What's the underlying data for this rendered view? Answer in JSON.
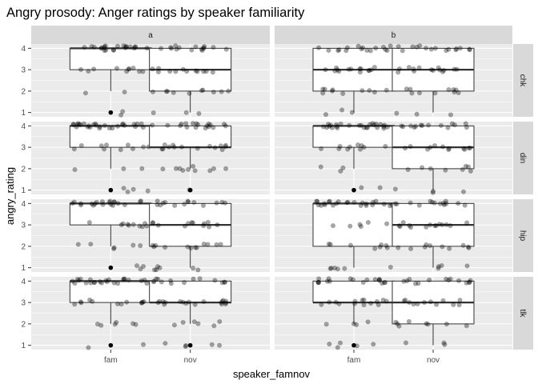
{
  "chart_data": {
    "type": "boxplot",
    "title": "Angry prosody: Anger ratings by speaker familiarity",
    "xlabel": "speaker_famnov",
    "ylabel": "angry_rating",
    "categories": [
      "fam",
      "nov"
    ],
    "y_ticks": [
      1,
      2,
      3,
      4
    ],
    "ylim": [
      0.8,
      4.2
    ],
    "facet_cols": [
      "a",
      "b"
    ],
    "facet_rows": [
      "chk",
      "din",
      "hip",
      "tlk"
    ],
    "grid": true,
    "panels": [
      {
        "col": "a",
        "row": "chk",
        "boxes": [
          {
            "x": "fam",
            "q1": 3,
            "median": 4,
            "q3": 4,
            "whisker_low": 2,
            "whisker_high": 4,
            "outliers": [
              1
            ],
            "counts": {
              "1": 2,
              "2": 2,
              "3": 10,
              "4": 22
            }
          },
          {
            "x": "nov",
            "q1": 2,
            "median": 3,
            "q3": 4,
            "whisker_low": 1,
            "whisker_high": 4,
            "outliers": [],
            "counts": {
              "1": 3,
              "2": 10,
              "3": 12,
              "4": 15
            }
          }
        ]
      },
      {
        "col": "b",
        "row": "chk",
        "boxes": [
          {
            "x": "fam",
            "q1": 2,
            "median": 3,
            "q3": 4,
            "whisker_low": 1,
            "whisker_high": 4,
            "outliers": [],
            "counts": {
              "1": 3,
              "2": 10,
              "3": 14,
              "4": 16
            }
          },
          {
            "x": "nov",
            "q1": 2,
            "median": 3,
            "q3": 4,
            "whisker_low": 1,
            "whisker_high": 4,
            "outliers": [],
            "counts": {
              "1": 3,
              "2": 10,
              "3": 14,
              "4": 15
            }
          }
        ]
      },
      {
        "col": "a",
        "row": "din",
        "boxes": [
          {
            "x": "fam",
            "q1": 3,
            "median": 4,
            "q3": 4,
            "whisker_low": 2,
            "whisker_high": 4,
            "outliers": [
              1
            ],
            "counts": {
              "1": 4,
              "2": 3,
              "3": 10,
              "4": 28
            }
          },
          {
            "x": "nov",
            "q1": 3,
            "median": 3,
            "q3": 4,
            "whisker_low": 2,
            "whisker_high": 4,
            "outliers": [
              1
            ],
            "counts": {
              "1": 1,
              "2": 10,
              "3": 14,
              "4": 18
            }
          }
        ]
      },
      {
        "col": "b",
        "row": "din",
        "boxes": [
          {
            "x": "fam",
            "q1": 3,
            "median": 4,
            "q3": 4,
            "whisker_low": 2,
            "whisker_high": 4,
            "outliers": [
              1
            ],
            "counts": {
              "1": 2,
              "2": 3,
              "3": 10,
              "4": 26
            }
          },
          {
            "x": "nov",
            "q1": 2,
            "median": 3,
            "q3": 4,
            "whisker_low": 1,
            "whisker_high": 4,
            "outliers": [],
            "counts": {
              "1": 4,
              "2": 8,
              "3": 12,
              "4": 14
            }
          }
        ]
      },
      {
        "col": "a",
        "row": "hip",
        "boxes": [
          {
            "x": "fam",
            "q1": 3,
            "median": 4,
            "q3": 4,
            "whisker_low": 2,
            "whisker_high": 4,
            "outliers": [
              1
            ],
            "counts": {
              "1": 3,
              "2": 6,
              "3": 10,
              "4": 20
            }
          },
          {
            "x": "nov",
            "q1": 2,
            "median": 3,
            "q3": 4,
            "whisker_low": 1,
            "whisker_high": 4,
            "outliers": [],
            "counts": {
              "1": 6,
              "2": 12,
              "3": 12,
              "4": 14
            }
          }
        ]
      },
      {
        "col": "b",
        "row": "hip",
        "boxes": [
          {
            "x": "fam",
            "q1": 2,
            "median": 4,
            "q3": 4,
            "whisker_low": 1,
            "whisker_high": 4,
            "outliers": [],
            "counts": {
              "1": 6,
              "2": 8,
              "3": 6,
              "4": 24
            }
          },
          {
            "x": "nov",
            "q1": 2,
            "median": 3,
            "q3": 4,
            "whisker_low": 1,
            "whisker_high": 4,
            "outliers": [],
            "counts": {
              "1": 4,
              "2": 10,
              "3": 14,
              "4": 14
            }
          }
        ]
      },
      {
        "col": "a",
        "row": "tlk",
        "boxes": [
          {
            "x": "fam",
            "q1": 3,
            "median": 4,
            "q3": 4,
            "whisker_low": 2,
            "whisker_high": 4,
            "outliers": [
              1
            ],
            "counts": {
              "1": 2,
              "2": 6,
              "3": 12,
              "4": 24
            }
          },
          {
            "x": "nov",
            "q1": 3,
            "median": 3,
            "q3": 4,
            "whisker_low": 2,
            "whisker_high": 4,
            "outliers": [
              1
            ],
            "counts": {
              "1": 5,
              "2": 6,
              "3": 18,
              "4": 14
            }
          }
        ]
      },
      {
        "col": "b",
        "row": "tlk",
        "boxes": [
          {
            "x": "fam",
            "q1": 3,
            "median": 3,
            "q3": 4,
            "whisker_low": 2,
            "whisker_high": 4,
            "outliers": [
              1
            ],
            "counts": {
              "1": 5,
              "2": 4,
              "3": 14,
              "4": 18
            }
          },
          {
            "x": "nov",
            "q1": 2,
            "median": 3,
            "q3": 4,
            "whisker_low": 1,
            "whisker_high": 4,
            "outliers": [],
            "counts": {
              "1": 3,
              "2": 8,
              "3": 12,
              "4": 14
            }
          }
        ]
      }
    ]
  }
}
